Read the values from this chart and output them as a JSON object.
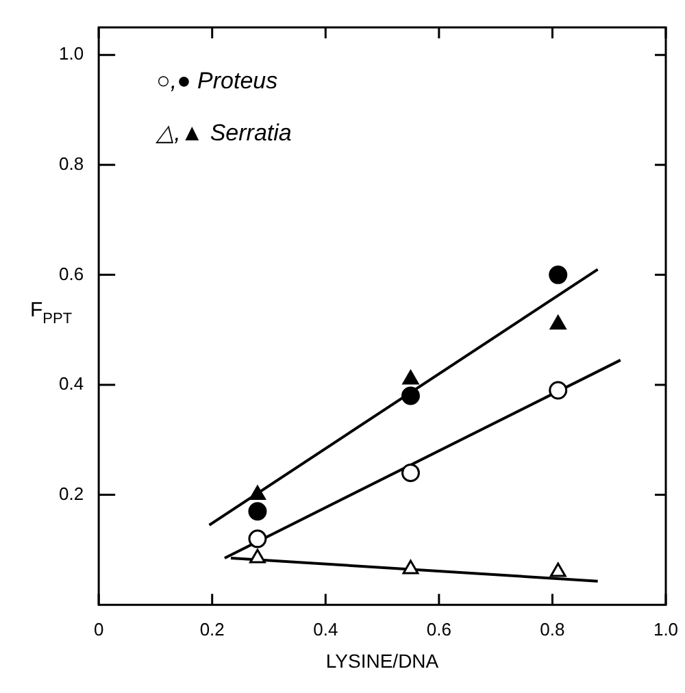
{
  "chart_data": {
    "type": "scatter",
    "xlabel": "LYSINE/DNA",
    "ylabel": "F$_{PPT}$",
    "xlim": [
      0,
      1.0
    ],
    "ylim": [
      0,
      1.05
    ],
    "xticks": [
      0,
      0.2,
      0.4,
      0.6,
      0.8,
      {
        "value": 1.0,
        "label": "1.0"
      }
    ],
    "yticks": [
      0.2,
      0.4,
      0.6,
      0.8,
      {
        "value": 1.0,
        "label": "1.0"
      }
    ],
    "grid": false,
    "annotations": [
      "○,● Proteus",
      "△,▲ Serratia"
    ],
    "series": [
      {
        "marker": "circle",
        "color": "#ffffff",
        "x": [
          0.28,
          0.55,
          0.81
        ],
        "values": [
          0.12,
          0.24,
          0.39
        ]
      },
      {
        "marker": "circle",
        "color": "#000000",
        "x": [
          0.28,
          0.55,
          0.81
        ],
        "values": [
          0.17,
          0.38,
          0.6
        ]
      },
      {
        "marker": "triangle",
        "color": "#ffffff",
        "x": [
          0.28,
          0.55,
          0.81
        ],
        "values": [
          0.085,
          0.065,
          0.06
        ]
      },
      {
        "marker": "triangle",
        "color": "#000000",
        "x": [
          0.28,
          0.55,
          0.81
        ],
        "values": [
          0.2,
          0.41,
          0.51
        ]
      },
      {
        "type": "line",
        "marker": "none",
        "line_style": "solid",
        "color": "#000000",
        "x": [
          0.195,
          0.88
        ],
        "values": [
          0.145,
          0.61
        ]
      },
      {
        "type": "line",
        "marker": "none",
        "line_style": "solid",
        "color": "#000000",
        "x": [
          0.222,
          0.92
        ],
        "values": [
          0.085,
          0.445
        ]
      },
      {
        "type": "line",
        "marker": "none",
        "line_style": "solid",
        "color": "#000000",
        "x": [
          0.233,
          0.88
        ],
        "values": [
          0.085,
          0.043
        ]
      }
    ]
  }
}
